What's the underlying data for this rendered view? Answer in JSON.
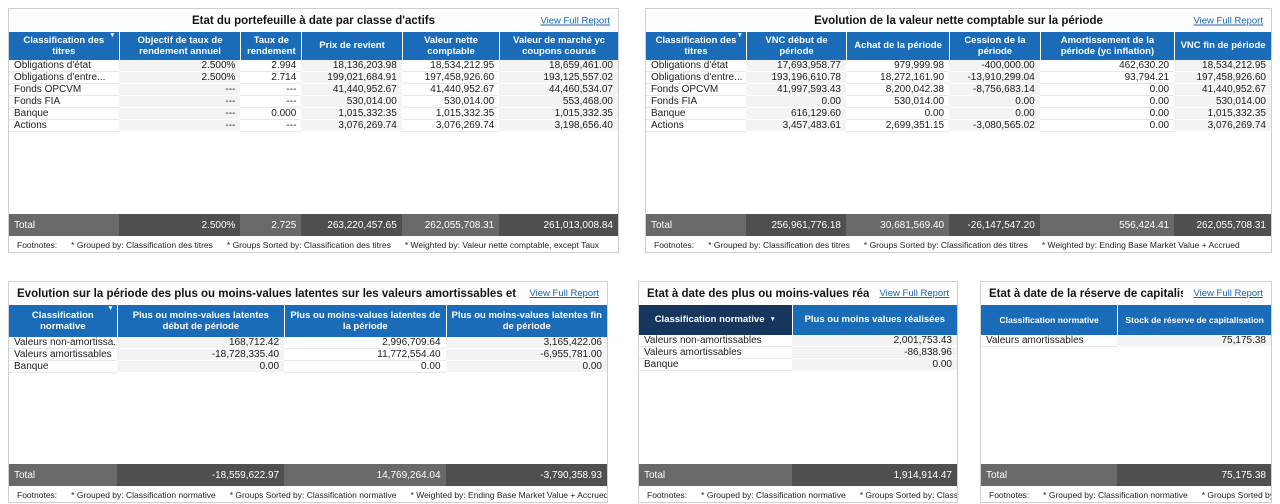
{
  "view_full_report": "View Full Report",
  "footnotes_label": "Footnotes:",
  "total_label": "Total",
  "colors": {
    "header_blue": "#1A6CB8",
    "header_navy": "#16365D",
    "total_medium": "#696969",
    "total_dark": "#4F4F4F",
    "link_blue": "#1565b5",
    "cell_stripe": "#f3f3f3"
  },
  "panels": [
    {
      "title": "Etat du portefeuille à date par classe d'actifs",
      "columns": [
        "Classification des titres",
        "Objectif de taux de rendement annuel",
        "Taux de rendement",
        "Prix de revient",
        "Valeur nette comptable",
        "Valeur de marché yc coupons courus"
      ],
      "rows": [
        [
          "Obligations d'état",
          "2.500%",
          "2.994",
          "18,136,203.98",
          "18,534,212.95",
          "18,659,461.00"
        ],
        [
          "Obligations d'entre...",
          "2.500%",
          "2.714",
          "199,021,684.91",
          "197,458,926.60",
          "193,125,557.02"
        ],
        [
          "Fonds OPCVM",
          "---",
          "---",
          "41,440,952.67",
          "41,440,952.67",
          "44,460,534.07"
        ],
        [
          "Fonds FIA",
          "---",
          "---",
          "530,014.00",
          "530,014.00",
          "553,468.00"
        ],
        [
          "Banque",
          "---",
          "0.000",
          "1,015,332.35",
          "1,015,332.35",
          "1,015,332.35"
        ],
        [
          "Actions",
          "---",
          "---",
          "3,076,269.74",
          "3,076,269.74",
          "3,198,656.40"
        ]
      ],
      "total": [
        "2.500%",
        "2.725",
        "263,220,457.65",
        "262,055,708.31",
        "261,013,008.84"
      ],
      "footnotes": [
        "* Grouped by: Classification des titres",
        "* Groups Sorted by: Classification des titres",
        "* Weighted by: Valeur nette comptable, except Taux"
      ]
    },
    {
      "title": "Evolution de la valeur nette comptable sur la période",
      "columns": [
        "Classification des titres",
        "VNC début de période",
        "Achat de la période",
        "Cession de la période",
        "Amortissement de la période (yc inflation)",
        "VNC fin de période"
      ],
      "rows": [
        [
          "Obligations d'état",
          "17,693,958.77",
          "979,999.98",
          "-400,000.00",
          "462,630.20",
          "18,534,212.95"
        ],
        [
          "Obligations d'entre...",
          "193,196,610.78",
          "18,272,161.90",
          "-13,910,299.04",
          "93,794.21",
          "197,458,926.60"
        ],
        [
          "Fonds OPCVM",
          "41,997,593.43",
          "8,200,042.38",
          "-8,756,683.14",
          "0.00",
          "41,440,952.67"
        ],
        [
          "Fonds FIA",
          "0.00",
          "530,014.00",
          "0.00",
          "0.00",
          "530,014.00"
        ],
        [
          "Banque",
          "616,129.60",
          "0.00",
          "0.00",
          "0.00",
          "1,015,332.35"
        ],
        [
          "Actions",
          "3,457,483.61",
          "2,699,351.15",
          "-3,080,565.02",
          "0.00",
          "3,076,269.74"
        ]
      ],
      "total": [
        "256,961,776.18",
        "30,681,569.40",
        "-26,147,547.20",
        "556,424.41",
        "262,055,708.31"
      ],
      "footnotes": [
        "* Grouped by: Classification des titres",
        "* Groups Sorted by: Classification des titres",
        "* Weighted by: Ending Base Market Value + Accrued"
      ]
    },
    {
      "title": "Evolution sur la période des plus ou moins-values latentes sur les valeurs amortissables et non amortissables",
      "columns": [
        "Classification normative",
        "Plus ou moins-values latentes début de période",
        "Plus ou moins-values latentes de la période",
        "Plus ou moins-values latentes fin de période"
      ],
      "rows": [
        [
          "Valeurs non-amortissa...",
          "168,712.42",
          "2,996,709.64",
          "3,165,422.06"
        ],
        [
          "Valeurs amortissables",
          "-18,728,335.40",
          "11,772,554.40",
          "-6,955,781.00"
        ],
        [
          "Banque",
          "0.00",
          "0.00",
          "0.00"
        ]
      ],
      "total": [
        "-18,559,622.97",
        "14,769,264.04",
        "-3,790,358.93"
      ],
      "footnotes": [
        "* Grouped by: Classification normative",
        "* Groups Sorted by: Classification normative",
        "* Weighted by: Ending Base Market Value + Accrued"
      ]
    },
    {
      "title": "Etat à date des plus ou moins-values réalisées",
      "columns": [
        "Classification normative",
        "Plus ou moins values réalisées"
      ],
      "rows": [
        [
          "Valeurs non-amortissables",
          "2,001,753.43"
        ],
        [
          "Valeurs amortissables",
          "-86,838.96"
        ],
        [
          "Banque",
          "0.00"
        ]
      ],
      "total": [
        "1,914,914.47"
      ],
      "footnotes": [
        "* Grouped by: Classification normative",
        "* Groups Sorted by: Classification normative"
      ]
    },
    {
      "title": "Etat à date de la réserve de capitalisation",
      "columns": [
        "Classification normative",
        "Stock de réserve de capitalisation"
      ],
      "rows": [
        [
          "Valeurs amortissables",
          "75,175.38"
        ]
      ],
      "total": [
        "75,175.38"
      ],
      "footnotes": [
        "* Grouped by: Classification normative",
        "* Groups Sorted by: Classification normative"
      ]
    }
  ]
}
